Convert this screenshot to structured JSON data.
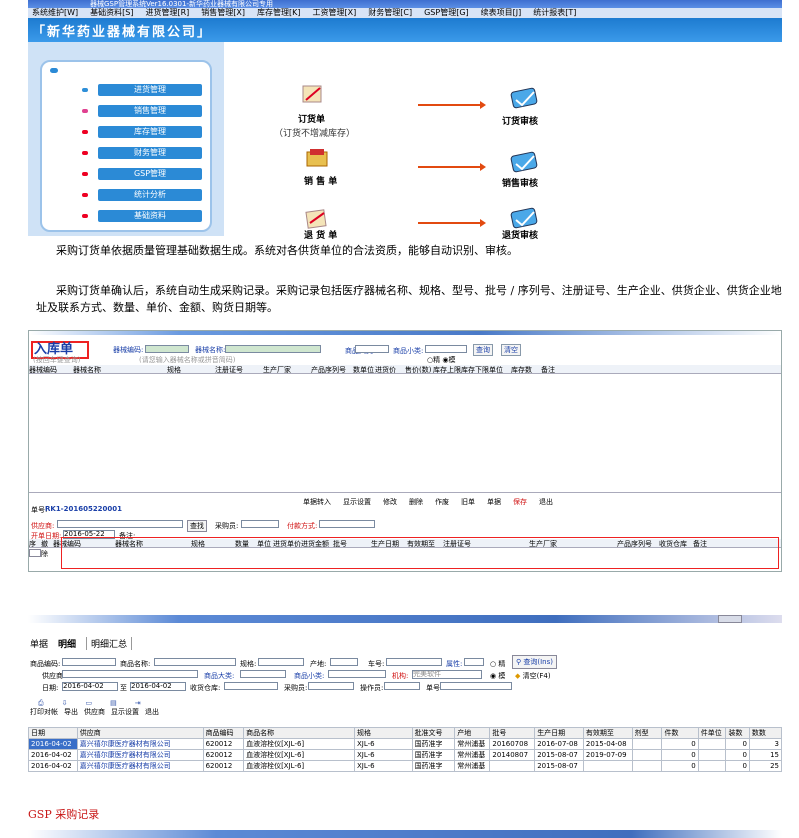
{
  "screen1": {
    "title": "器械GSP管理系统Ver16.0301-新华药业器械有限公司专用",
    "menu": [
      "系统维护[W]",
      "基础资料[S]",
      "进货管理[R]",
      "销售管理[X]",
      "库存管理[K]",
      "工资管理[X]",
      "财务管理[C]",
      "GSP管理[G]",
      "续表项目[J]",
      "统计报表[T]"
    ],
    "company": "「新华药业器械有限公司」",
    "nav": [
      "进货管理",
      "销售管理",
      "库存管理",
      "财务管理",
      "GSP管理",
      "统计分析",
      "基础资料"
    ],
    "flow": {
      "order": "订货单",
      "order_note": "（订货不增减库存）",
      "order_audit": "订货审核",
      "sale": "销 售 单",
      "sale_audit": "销售审核",
      "return": "退 货 单",
      "return_audit": "退货审核"
    }
  },
  "para1": "采购订货单依据质量管理基础数据生成。系统对各供货单位的合法资质，能够自动识别、审核。",
  "para2": "采购订货单确认后，系统自动生成采购记录。采购记录包括医疗器械名称、规格、型号、批号 / 序列号、注册证号、生产企业、供货企业、供货企业地址及联系方式、数量、单价、金额、购货日期等。",
  "screen2": {
    "title": "入库单",
    "search": {
      "code_label": "器械编码:",
      "code_hint": "(按回车键查询)",
      "name_label": "器械名称:",
      "name_hint": "(请您输入器械名称或拼音简码)",
      "big_label": "商品大类:",
      "small_label": "商品小类:",
      "precise": "精",
      "fuzzy": "模",
      "query": "查询",
      "clear": "清空"
    },
    "top_cols": [
      "器械编码",
      "器械名称",
      "规格",
      "注册证号",
      "生产厂家",
      "产品序列号",
      "数单位",
      "进货价(数)",
      "售价(数)",
      "库存上限",
      "库存下限",
      "单位",
      "库存数",
      "备注"
    ],
    "order_no_label": "单号:",
    "order_no": "RK1-201605220001",
    "tools": [
      "单据转入",
      "显示设置",
      "修改",
      "删除",
      "作废",
      "旧单",
      "单据",
      "保存",
      "退出"
    ],
    "supplier_label": "供应商:",
    "find": "查找",
    "buyer_label": "采购员:",
    "pay_label": "付款方式:",
    "date_label": "开单日期:",
    "date": "2016-05-22",
    "note_label": "备注:",
    "bottom_cols": [
      "序号",
      "撤除",
      "器械编码",
      "器械名称",
      "规格",
      "数量",
      "单位",
      "进货单价",
      "进货金额",
      "批号",
      "生产日期",
      "有效期至",
      "注册证号",
      "生产厂家",
      "产品序列号",
      "收货仓库",
      "备注"
    ]
  },
  "screen3": {
    "tabs": [
      "单据",
      "明细",
      "明细汇总"
    ],
    "filters": {
      "goods_code": "商品编码:",
      "goods_name": "商品名称:",
      "spec": "规格:",
      "origin": "产地:",
      "car": "车号:",
      "property": "属性:",
      "precise": "精",
      "fuzzy": "模",
      "query": "查询(Ins)",
      "supplier": "供应商:",
      "big": "商品大类:",
      "small": "商品小类:",
      "org_label": "机构:",
      "org": "完美软件",
      "clear": "清空(F4)",
      "date_label": "日期:",
      "date_from": "2016-04-02",
      "to": "至",
      "date_to": "2016-04-02",
      "warehouse": "收货仓库:",
      "buyer": "采购员:",
      "operator": "操作员:",
      "order_no": "单号:"
    },
    "toolbar": [
      "打印对帐",
      "导出",
      "供应商",
      "显示设置",
      "退出"
    ],
    "columns": [
      "日期",
      "供应商",
      "商品编码",
      "商品名称",
      "规格",
      "批准文号",
      "产地",
      "批号",
      "生产日期",
      "有效期至",
      "剂型",
      "件数",
      "件单位",
      "装数",
      "数数"
    ],
    "rows": [
      [
        "2016-04-02",
        "嘉兴禧尔康医疗器材有限公司",
        "620012",
        "血液溶栓仪[XJL-6]",
        "XJL-6",
        "国药准字",
        "常州浦基",
        "20160708",
        "2016-07-08",
        "2015-04-08",
        "",
        "0",
        "",
        "0",
        "3"
      ],
      [
        "2016-04-02",
        "嘉兴禧尔康医疗器材有限公司",
        "620012",
        "血液溶栓仪[XJL-6]",
        "XJL-6",
        "国药准字",
        "常州浦基",
        "20140807",
        "2015-08-07",
        "2019-07-09",
        "",
        "0",
        "",
        "0",
        "15"
      ],
      [
        "2016-04-02",
        "嘉兴禧尔康医疗器材有限公司",
        "620012",
        "血液溶栓仪[XJL-6]",
        "XJL-6",
        "国药准字",
        "常州浦基",
        "",
        "2015-08-07",
        "",
        "",
        "0",
        "",
        "0",
        "25"
      ]
    ]
  },
  "caption": "GSP 采购记录"
}
